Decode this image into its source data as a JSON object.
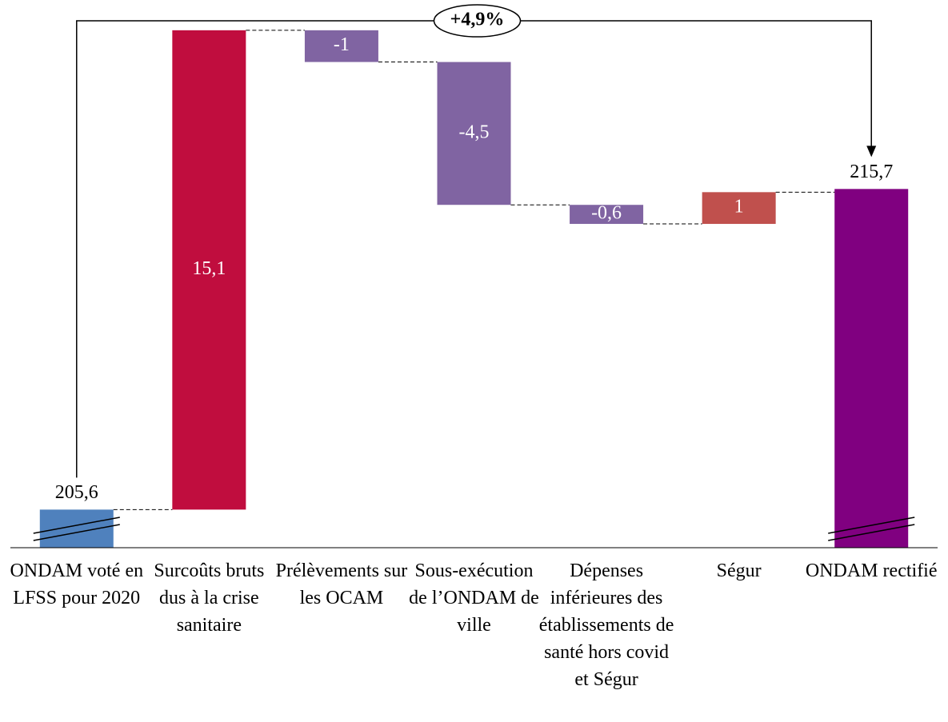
{
  "chart_data": {
    "type": "waterfall",
    "categories": [
      "ONDAM voté en LFSS pour 2020",
      "Surcoûts bruts dus à la crise sanitaire",
      "Prélèvements sur les OCAM",
      "Sous-exécution de l’ONDAM de ville",
      "Dépenses inférieures des établissements de santé hors covid et Ségur",
      "Ségur",
      "ONDAM rectifié"
    ],
    "values": [
      205.6,
      15.1,
      -1,
      -4.5,
      -0.6,
      1,
      215.7
    ],
    "value_labels": [
      "205,6",
      "15,1",
      "-1",
      "-4,5",
      "-0,6",
      "1",
      "215,7"
    ],
    "measure": [
      "absolute",
      "relative",
      "relative",
      "relative",
      "relative",
      "relative",
      "total"
    ],
    "colors": [
      "#4f81bd",
      "#c00d3e",
      "#8064a2",
      "#8064a2",
      "#8064a2",
      "#c0504d",
      "#800080"
    ],
    "ylim": [
      204.4,
      221.2
    ],
    "annotation": "+4,9%"
  }
}
